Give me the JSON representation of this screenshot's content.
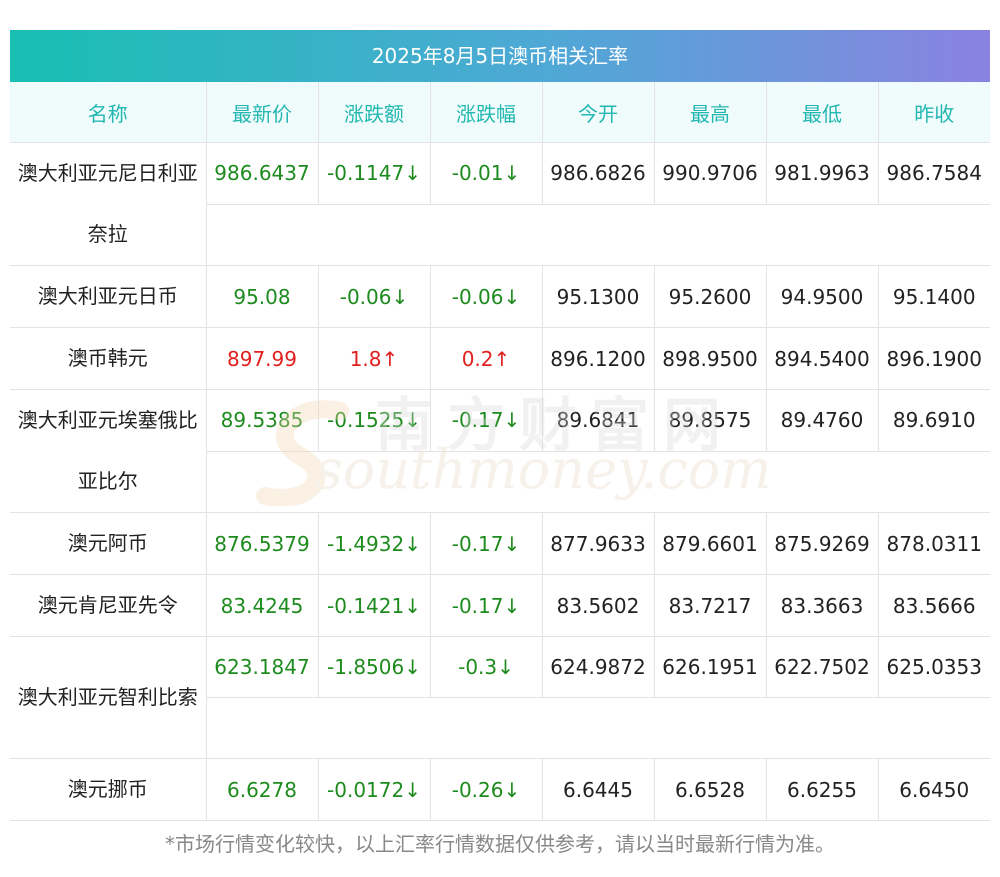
{
  "title": "2025年8月5日澳币相关汇率",
  "headers": [
    "名称",
    "最新价",
    "涨跌额",
    "涨跌幅",
    "今开",
    "最高",
    "最低",
    "昨收"
  ],
  "rows": [
    {
      "name": "澳大利亚元尼日利亚奈拉",
      "latest": "986.6437",
      "change": "-0.1147↓",
      "pct": "-0.01↓",
      "open": "986.6826",
      "high": "990.9706",
      "low": "981.9963",
      "prev": "986.7584",
      "trend": "down"
    },
    {
      "name": "澳大利亚元日币",
      "latest": "95.08",
      "change": "-0.06↓",
      "pct": "-0.06↓",
      "open": "95.1300",
      "high": "95.2600",
      "low": "94.9500",
      "prev": "95.1400",
      "trend": "down"
    },
    {
      "name": "澳币韩元",
      "latest": "897.99",
      "change": "1.8↑",
      "pct": "0.2↑",
      "open": "896.1200",
      "high": "898.9500",
      "low": "894.5400",
      "prev": "896.1900",
      "trend": "up"
    },
    {
      "name": "澳大利亚元埃塞俄比亚比尔",
      "latest": "89.5385",
      "change": "-0.1525↓",
      "pct": "-0.17↓",
      "open": "89.6841",
      "high": "89.8575",
      "low": "89.4760",
      "prev": "89.6910",
      "trend": "down"
    },
    {
      "name": "澳元阿币",
      "latest": "876.5379",
      "change": "-1.4932↓",
      "pct": "-0.17↓",
      "open": "877.9633",
      "high": "879.6601",
      "low": "875.9269",
      "prev": "878.0311",
      "trend": "down"
    },
    {
      "name": "澳元肯尼亚先令",
      "latest": "83.4245",
      "change": "-0.1421↓",
      "pct": "-0.17↓",
      "open": "83.5602",
      "high": "83.7217",
      "low": "83.3663",
      "prev": "83.5666",
      "trend": "down"
    },
    {
      "name": "澳大利亚元智利比索",
      "latest": "623.1847",
      "change": "-1.8506↓",
      "pct": "-0.3↓",
      "open": "624.9872",
      "high": "626.1951",
      "low": "622.7502",
      "prev": "625.0353",
      "trend": "down"
    },
    {
      "name": "澳元挪币",
      "latest": "6.6278",
      "change": "-0.0172↓",
      "pct": "-0.26↓",
      "open": "6.6445",
      "high": "6.6528",
      "low": "6.6255",
      "prev": "6.6450",
      "trend": "down"
    }
  ],
  "watermark": {
    "cn": "南方财富网",
    "en": "southmoney.com"
  },
  "footnote": "*市场行情变化较快，以上汇率行情数据仅供参考，请以当时最新行情为准。",
  "colors": {
    "up": "#e0201f",
    "down": "#1e8b1e",
    "header_text": "#22b7b0"
  }
}
